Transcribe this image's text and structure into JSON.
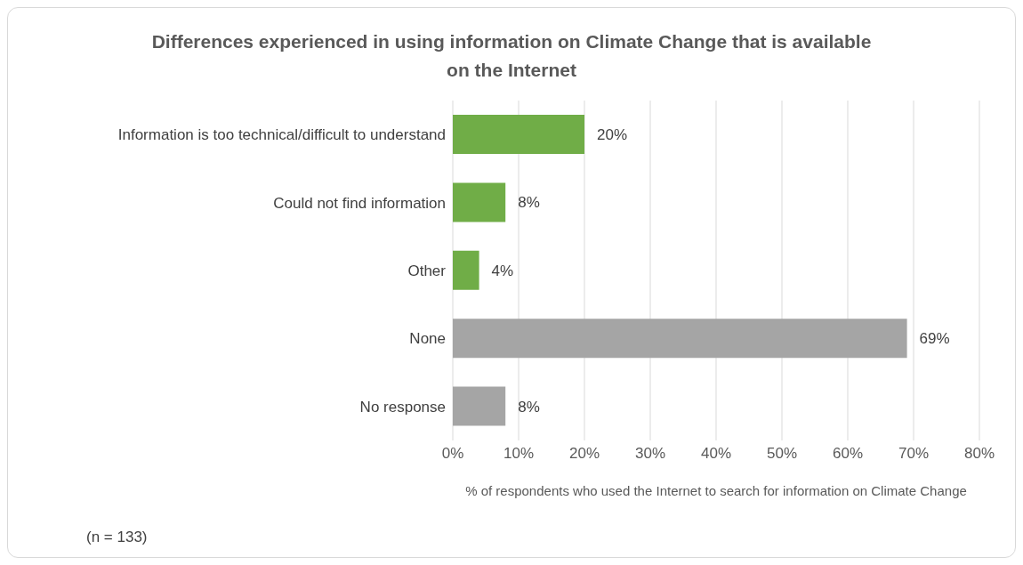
{
  "chart_data": {
    "type": "bar",
    "orientation": "horizontal",
    "title": "Differences experienced in using information on Climate Change that is available on the Internet",
    "xlabel": "% of respondents who used the Internet to search for information on Climate Change",
    "categories": [
      "Information is too technical/difficult to understand",
      "Could not find information",
      "Other",
      "None",
      "No response"
    ],
    "values": [
      20,
      8,
      4,
      69,
      8
    ],
    "colors": [
      "#70ad47",
      "#70ad47",
      "#70ad47",
      "#a5a5a5",
      "#a5a5a5"
    ],
    "value_labels": [
      "20%",
      "8%",
      "4%",
      "69%",
      "8%"
    ],
    "xlim": [
      0,
      80
    ],
    "xticks": [
      {
        "value": 0,
        "label": "0%"
      },
      {
        "value": 10,
        "label": "10%"
      },
      {
        "value": 20,
        "label": "20%"
      },
      {
        "value": 30,
        "label": "30%"
      },
      {
        "value": 40,
        "label": "40%"
      },
      {
        "value": 50,
        "label": "50%"
      },
      {
        "value": 60,
        "label": "60%"
      },
      {
        "value": 70,
        "label": "70%"
      },
      {
        "value": 80,
        "label": "80%"
      }
    ],
    "grid": "x",
    "legend": false,
    "annotations": [
      "(n = 133)"
    ]
  }
}
